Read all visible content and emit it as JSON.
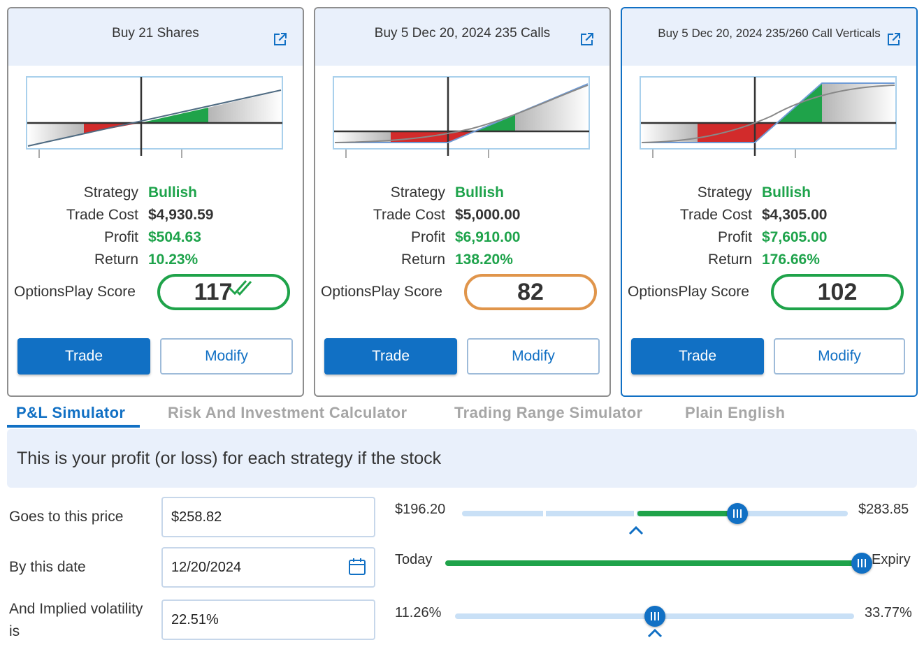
{
  "colors": {
    "accent": "#1170c4",
    "bullish": "#1ea34b",
    "loss": "#d22b2b",
    "score_orange": "#e0954b"
  },
  "cards": [
    {
      "title": "Buy 21 Shares",
      "strategy_label": "Strategy",
      "strategy": "Bullish",
      "trade_cost_label": "Trade Cost",
      "trade_cost": "$4,930.59",
      "profit_label": "Profit",
      "profit": "$504.63",
      "return_label": "Return",
      "return": "10.23%",
      "score_label": "OptionsPlay Score",
      "score": "117",
      "trade_label": "Trade",
      "modify_label": "Modify"
    },
    {
      "title": "Buy 5 Dec 20, 2024 235 Calls",
      "strategy_label": "Strategy",
      "strategy": "Bullish",
      "trade_cost_label": "Trade Cost",
      "trade_cost": "$5,000.00",
      "profit_label": "Profit",
      "profit": "$6,910.00",
      "return_label": "Return",
      "return": "138.20%",
      "score_label": "OptionsPlay Score",
      "score": "82",
      "trade_label": "Trade",
      "modify_label": "Modify"
    },
    {
      "title": "Buy 5 Dec 20, 2024 235/260 Call Verticals",
      "strategy_label": "Strategy",
      "strategy": "Bullish",
      "trade_cost_label": "Trade Cost",
      "trade_cost": "$4,305.00",
      "profit_label": "Profit",
      "profit": "$7,605.00",
      "return_label": "Return",
      "return": "176.66%",
      "score_label": "OptionsPlay Score",
      "score": "102",
      "trade_label": "Trade",
      "modify_label": "Modify"
    }
  ],
  "tabs": [
    {
      "label": "P&L Simulator",
      "active": true
    },
    {
      "label": "Risk And Investment Calculator",
      "active": false
    },
    {
      "label": "Trading Range Simulator",
      "active": false
    },
    {
      "label": "Plain English",
      "active": false
    }
  ],
  "simulator": {
    "banner": "This is your profit (or loss) for each strategy if the stock",
    "price": {
      "label": "Goes to this price",
      "value": "$258.82",
      "min": "$196.20",
      "max": "$283.85",
      "position": 0.8
    },
    "date": {
      "label": "By this date",
      "value": "12/20/2024",
      "min": "Today",
      "max": "Expiry",
      "position": 1.0
    },
    "volatility": {
      "label": "And Implied volatility is",
      "value": "22.51%",
      "min": "11.26%",
      "max": "33.77%",
      "position": 0.5
    }
  },
  "icons": {
    "external_link": "external-link-icon",
    "calendar": "calendar-icon",
    "check": "double-check-icon",
    "caret": "caret-up-icon"
  }
}
